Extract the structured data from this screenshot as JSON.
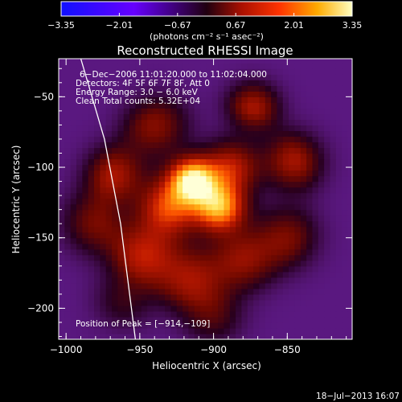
{
  "chart_data": {
    "type": "heatmap",
    "title": "Reconstructed RHESSI Image",
    "xlabel": "Heliocentric X (arcsec)",
    "ylabel": "Heliocentric Y (arcsec)",
    "xlim": [
      -1005,
      -806
    ],
    "ylim": [
      -222,
      -23
    ],
    "x_ticks": [
      -1000,
      -950,
      -900,
      -850
    ],
    "y_ticks": [
      -50,
      -100,
      -150,
      -200
    ],
    "x_tick_labels": [
      "−1000",
      "−950",
      "−900",
      "−850"
    ],
    "y_tick_labels": [
      "−50",
      "−100",
      "−150",
      "−200"
    ],
    "colorbar": {
      "min": -3.35,
      "max": 3.35,
      "tick_values": [
        -3.35,
        -2.01,
        -0.67,
        0.67,
        2.01,
        3.35
      ],
      "tick_labels": [
        "−3.35",
        "−2.01",
        "−0.67",
        "0.67",
        "2.01",
        "3.35"
      ],
      "unit_label": "(photons cm⁻² s⁻¹ asec⁻²)"
    },
    "annotations": [
      "6−Dec−2006 11:01:20.000 to 11:02:04.000",
      "Detectors: 4F 5F 6F 7F 8F, Att 0",
      "Energy Range: 3.0 − 6.0 keV",
      "Clean     Total counts: 5.32E+04"
    ],
    "peak_label": "Position of Peak = [−914,−109]",
    "peak": [
      -914,
      -109
    ],
    "sources": [
      {
        "x": -914,
        "y": -109,
        "sigma": 11,
        "amp": 2.6
      },
      {
        "x": -896,
        "y": -128,
        "sigma": 12,
        "amp": 2.2
      },
      {
        "x": -930,
        "y": -128,
        "sigma": 14,
        "amp": 1.6
      },
      {
        "x": -888,
        "y": -100,
        "sigma": 13,
        "amp": 1.3
      },
      {
        "x": -968,
        "y": -105,
        "sigma": 14,
        "amp": 1.2
      },
      {
        "x": -872,
        "y": -55,
        "sigma": 12,
        "amp": 1.3
      },
      {
        "x": -845,
        "y": -95,
        "sigma": 14,
        "amp": 1.2
      },
      {
        "x": -948,
        "y": -162,
        "sigma": 16,
        "amp": 1.3
      },
      {
        "x": -915,
        "y": -180,
        "sigma": 16,
        "amp": 1.1
      },
      {
        "x": -880,
        "y": -165,
        "sigma": 15,
        "amp": 1.0
      },
      {
        "x": -985,
        "y": -140,
        "sigma": 15,
        "amp": 1.0
      },
      {
        "x": -940,
        "y": -70,
        "sigma": 15,
        "amp": 1.0
      },
      {
        "x": -965,
        "y": -200,
        "sigma": 14,
        "amp": 0.8
      },
      {
        "x": -900,
        "y": -210,
        "sigma": 14,
        "amp": 0.8
      },
      {
        "x": -850,
        "y": -150,
        "sigma": 15,
        "amp": 0.9
      }
    ],
    "limb": [
      [
        -990,
        -23
      ],
      [
        -974,
        -80
      ],
      [
        -963,
        -140
      ],
      [
        -953,
        -222
      ]
    ],
    "grid": false
  },
  "footer": {
    "timestamp": "18−Jul−2013 16:07"
  }
}
